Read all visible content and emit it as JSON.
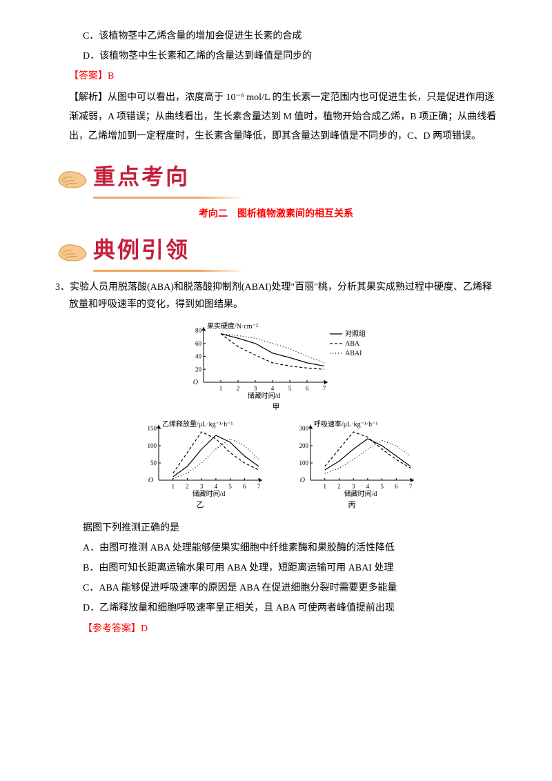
{
  "options_top": {
    "c": "C．该植物茎中乙烯含量的增加会促进生长素的合成",
    "d": "D．该植物茎中生长素和乙烯的含量达到峰值是同步的"
  },
  "answer1": "【答案】B",
  "analysis1": "【解析】从图中可以看出，浓度高于 10⁻⁶ mol/L 的生长素一定范围内也可促进生长，只是促进作用逐渐减弱，A 项错误；从曲线看出，生长素含量达到 M 值时，植物开始合成乙烯，B 项正确；从曲线看出，乙烯增加到一定程度时，生长素含量降低，即其含量达到峰值是不同步的，C、D 两项错误。",
  "banner1": "重点考向",
  "section_title": "考向二　图析植物激素间的相互关系",
  "banner2": "典例引领",
  "question3": {
    "num": "3．",
    "text": "实验人员用脱落酸(ABA)和脱落酸抑制剂(ABAI)处理\"百丽\"桃，分析其果实成熟过程中硬度、乙烯释放量和呼吸速率的变化，得到如图结果。"
  },
  "chart1": {
    "ylabel": "果实硬度/N·cm⁻²",
    "xlabel": "储藏时间/d",
    "caption": "甲",
    "legend": [
      "对照组",
      "ABA",
      "ABAI"
    ],
    "yticks": [
      0,
      20,
      40,
      60,
      80
    ],
    "xticks": [
      1,
      2,
      3,
      4,
      5,
      6,
      7
    ],
    "series": {
      "control": [
        75,
        68,
        60,
        45,
        38,
        30,
        25
      ],
      "aba": [
        75,
        55,
        42,
        30,
        25,
        22,
        20
      ],
      "abai": [
        75,
        72,
        68,
        60,
        52,
        40,
        30
      ]
    },
    "colors": {
      "axis": "#000000",
      "line": "#000000"
    }
  },
  "chart2": {
    "ylabel": "乙烯释放量/μL·kg⁻¹·h⁻¹",
    "xlabel": "储藏时间/d",
    "caption": "乙",
    "yticks": [
      0,
      50,
      100,
      150
    ],
    "xticks": [
      1,
      2,
      3,
      4,
      5,
      6,
      7
    ],
    "series": {
      "control": [
        10,
        40,
        90,
        130,
        110,
        70,
        40
      ],
      "aba": [
        20,
        80,
        140,
        120,
        80,
        50,
        30
      ],
      "abai": [
        5,
        20,
        50,
        90,
        120,
        100,
        60
      ]
    }
  },
  "chart3": {
    "ylabel": "呼吸速率/μL·kg⁻¹·h⁻¹",
    "xlabel": "储藏时间/d",
    "caption": "丙",
    "yticks": [
      0,
      100,
      200,
      300
    ],
    "xticks": [
      1,
      2,
      3,
      4,
      5,
      6,
      7
    ],
    "series": {
      "control": [
        60,
        110,
        180,
        240,
        200,
        140,
        80
      ],
      "aba": [
        80,
        180,
        280,
        250,
        180,
        120,
        70
      ],
      "abai": [
        40,
        70,
        120,
        180,
        230,
        200,
        140
      ]
    }
  },
  "question3_prompt": "据图下列推测正确的是",
  "options3": {
    "a": "A．由图可推测 ABA 处理能够使果实细胞中纤维素酶和果胶酶的活性降低",
    "b": "B．由图可知长距离运输水果可用 ABA 处理，短距离运输可用 ABAI 处理",
    "c": "C．ABA 能够促进呼吸速率的原因是 ABA 在促进细胞分裂时需要更多能量",
    "d": "D．乙烯释放量和细胞呼吸速率呈正相关，且 ABA 可使两者峰值提前出现"
  },
  "answer3": "【参考答案】D"
}
